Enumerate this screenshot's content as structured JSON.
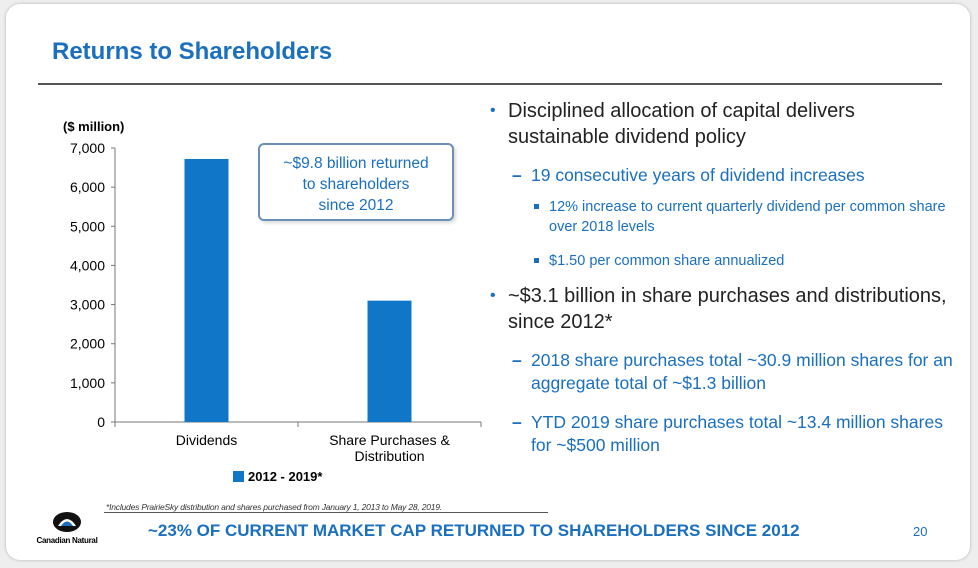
{
  "slide": {
    "title": "Returns to Shareholders",
    "page_number": "20",
    "footer_text": "~23% OF CURRENT MARKET CAP RETURNED TO SHAREHOLDERS SINCE 2012",
    "footnote": "*Includes PrairieSky distribution and shares purchased from January 1, 2013 to May 28, 2019.",
    "logo_text": "Canadian Natural"
  },
  "callout": {
    "lines": [
      "~$9.8 billion returned",
      "to shareholders",
      "since 2012"
    ]
  },
  "chart_data": {
    "type": "bar",
    "unit_label": "($ million)",
    "categories": [
      "Dividends",
      "Share Purchases & Distribution"
    ],
    "category_lines": [
      [
        "Dividends"
      ],
      [
        "Share Purchases &",
        "Distribution"
      ]
    ],
    "series": [
      {
        "name": "2012 - 2019*",
        "values": [
          6720,
          3100
        ],
        "color": "#0f76c8"
      }
    ],
    "ylim": [
      0,
      7000
    ],
    "yticks": [
      0,
      1000,
      2000,
      3000,
      4000,
      5000,
      6000,
      7000
    ],
    "ytick_labels": [
      "0",
      "1,000",
      "2,000",
      "3,000",
      "4,000",
      "5,000",
      "6,000",
      "7,000"
    ],
    "legend_position": "bottom",
    "grid": false
  },
  "bullets": {
    "b1": "Disciplined allocation of capital delivers sustainable dividend policy",
    "b1_1": "19 consecutive years of dividend increases",
    "b1_1_1": "12% increase to current quarterly dividend per common share over 2018 levels",
    "b1_1_2": "$1.50 per common share annualized",
    "b2": "~$3.1 billion in share purchases and distributions, since 2012*",
    "b2_1": "2018 share purchases total ~30.9 million shares for an aggregate total of ~$1.3 billion",
    "b2_2": "YTD 2019 share purchases total ~13.4 million shares for ~$500 million",
    "bullet_mark": "•",
    "dash_mark": "–"
  }
}
